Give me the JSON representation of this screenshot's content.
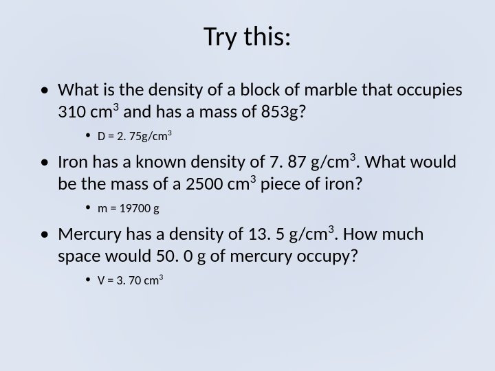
{
  "slide": {
    "background_color": "#dfe6f2",
    "title": "Try this:",
    "title_fontsize": 40,
    "body_fontsize": 27,
    "sub_fontsize": 18,
    "text_color": "#000000",
    "bullets": [
      {
        "question_pre": "What is the density of a block of marble that occupies 310 cm",
        "question_sup1": "3",
        "question_post": " and has a mass of 853g?",
        "answer_pre": "D  = 2. 75g/cm",
        "answer_sup": "3",
        "answer_post": ""
      },
      {
        "question_pre": "Iron has a known density of 7. 87 g/cm",
        "question_sup1": "3",
        "question_mid": ".  What would be the mass of a 2500 cm",
        "question_sup2": "3",
        "question_post": " piece of iron?",
        "answer_pre": "m = 19700 g",
        "answer_sup": "",
        "answer_post": ""
      },
      {
        "question_pre": "Mercury has a density of 13. 5 g/cm",
        "question_sup1": "3",
        "question_post": ".  How much space would 50. 0 g of mercury occupy?",
        "answer_pre": "V = 3. 70 cm",
        "answer_sup": "3",
        "answer_post": ""
      }
    ]
  }
}
